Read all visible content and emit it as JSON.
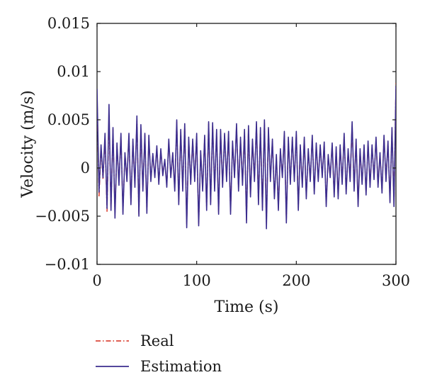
{
  "chart_data": {
    "type": "line",
    "xlabel": "Time (s)",
    "ylabel": "Velocity (m/s)",
    "xlim": [
      0,
      300
    ],
    "ylim": [
      -0.01,
      0.015
    ],
    "xticks": [
      0,
      100,
      200,
      300
    ],
    "xtick_labels": [
      "0",
      "100",
      "200",
      "300"
    ],
    "yticks": [
      -0.01,
      -0.005,
      0,
      0.005,
      0.01,
      0.015
    ],
    "ytick_labels": [
      "−0.01",
      "−0.005",
      "0",
      "0.005",
      "0.01",
      "0.015"
    ],
    "grid": false,
    "legend_position": "bottom-left, below plot",
    "series": [
      {
        "name": "Real",
        "color": "#d62a1a",
        "style": "dash-dot",
        "x": [
          0,
          2,
          4,
          6,
          8,
          10,
          12,
          14,
          16,
          18,
          20,
          22,
          24,
          26,
          28,
          30,
          32,
          34,
          36,
          38,
          40,
          42,
          44,
          46,
          48,
          50,
          52,
          54,
          56,
          58,
          60,
          62,
          64,
          66,
          68,
          70,
          72,
          74,
          76,
          78,
          80,
          82,
          84,
          86,
          88,
          90,
          92,
          94,
          96,
          98,
          100,
          102,
          104,
          106,
          108,
          110,
          112,
          114,
          116,
          118,
          120,
          122,
          124,
          126,
          128,
          130,
          132,
          134,
          136,
          138,
          140,
          142,
          144,
          146,
          148,
          150,
          152,
          154,
          156,
          158,
          160,
          162,
          164,
          166,
          168,
          170,
          172,
          174,
          176,
          178,
          180,
          182,
          184,
          186,
          188,
          190,
          192,
          194,
          196,
          198,
          200,
          202,
          204,
          206,
          208,
          210,
          212,
          214,
          216,
          218,
          220,
          222,
          224,
          226,
          228,
          230,
          232,
          234,
          236,
          238,
          240,
          242,
          244,
          246,
          248,
          250,
          252,
          254,
          256,
          258,
          260,
          262,
          264,
          266,
          268,
          270,
          272,
          274,
          276,
          278,
          280,
          282,
          284,
          286,
          288,
          290,
          292,
          294,
          296,
          298,
          300
        ],
        "y": [
          0.0075,
          -0.003,
          0.002,
          -0.0012,
          0.0033,
          -0.0045,
          0.0055,
          -0.0042,
          0.004,
          -0.0048,
          0.0024,
          -0.0015,
          0.0034,
          -0.0046,
          0.0015,
          -0.0012,
          0.0034,
          -0.0036,
          0.0028,
          -0.0018,
          0.0052,
          -0.0048,
          0.0042,
          -0.0022,
          0.0034,
          -0.0045,
          0.0032,
          -0.0012,
          0.0013,
          -0.0008,
          0.0021,
          -0.0015,
          0.0018,
          -0.0006,
          0.0007,
          -0.0018,
          0.0028,
          -0.0008,
          0.0014,
          -0.0022,
          0.0048,
          -0.0036,
          0.0038,
          -0.0022,
          0.0044,
          -0.0058,
          0.003,
          -0.0015,
          0.0028,
          -0.0012,
          0.0034,
          -0.0058,
          0.0016,
          -0.0022,
          0.0032,
          -0.0042,
          0.0046,
          -0.0036,
          0.0045,
          -0.0022,
          0.0038,
          -0.0046,
          0.0038,
          -0.0018,
          0.0034,
          -0.0012,
          0.0036,
          -0.0046,
          0.0026,
          -0.0008,
          0.0044,
          -0.0022,
          0.003,
          -0.0016,
          0.0038,
          -0.0055,
          0.0042,
          -0.0028,
          0.0028,
          -0.0012,
          0.0046,
          -0.0036,
          0.004,
          -0.0042,
          0.0048,
          -0.0058,
          0.004,
          -0.0012,
          0.0028,
          -0.003,
          0.0012,
          -0.0042,
          0.0018,
          -0.0008,
          0.0036,
          -0.0055,
          0.003,
          -0.0015,
          0.003,
          -0.0012,
          0.0036,
          -0.0042,
          0.0022,
          -0.0018,
          0.003,
          -0.003,
          0.0018,
          -0.0012,
          0.0032,
          -0.0025,
          0.0024,
          -0.0012,
          0.0022,
          -0.0008,
          0.0025,
          -0.0038,
          0.0012,
          -0.0008,
          0.0024,
          -0.0028,
          0.002,
          -0.003,
          0.0022,
          -0.0015,
          0.0034,
          -0.0025,
          0.0018,
          -0.0012,
          0.0045,
          -0.0022,
          0.0028,
          -0.0038,
          0.0018,
          -0.0015,
          0.0022,
          -0.0026,
          0.0026,
          -0.0018,
          0.0022,
          -0.001,
          0.003,
          -0.0018,
          0.0014,
          -0.0024,
          0.0032,
          -0.0012,
          0.0026,
          -0.0034,
          0.004,
          -0.0038,
          0.0088
        ]
      },
      {
        "name": "Estimation",
        "color": "#3b2d8e",
        "style": "solid",
        "x": [
          0,
          2,
          4,
          6,
          8,
          10,
          12,
          14,
          16,
          18,
          20,
          22,
          24,
          26,
          28,
          30,
          32,
          34,
          36,
          38,
          40,
          42,
          44,
          46,
          48,
          50,
          52,
          54,
          56,
          58,
          60,
          62,
          64,
          66,
          68,
          70,
          72,
          74,
          76,
          78,
          80,
          82,
          84,
          86,
          88,
          90,
          92,
          94,
          96,
          98,
          100,
          102,
          104,
          106,
          108,
          110,
          112,
          114,
          116,
          118,
          120,
          122,
          124,
          126,
          128,
          130,
          132,
          134,
          136,
          138,
          140,
          142,
          144,
          146,
          148,
          150,
          152,
          154,
          156,
          158,
          160,
          162,
          164,
          166,
          168,
          170,
          172,
          174,
          176,
          178,
          180,
          182,
          184,
          186,
          188,
          190,
          192,
          194,
          196,
          198,
          200,
          202,
          204,
          206,
          208,
          210,
          212,
          214,
          216,
          218,
          220,
          222,
          224,
          226,
          228,
          230,
          232,
          234,
          236,
          238,
          240,
          242,
          244,
          246,
          248,
          250,
          252,
          254,
          256,
          258,
          260,
          262,
          264,
          266,
          268,
          270,
          272,
          274,
          276,
          278,
          280,
          282,
          284,
          286,
          288,
          290,
          292,
          294,
          296,
          298,
          300
        ],
        "y": [
          0.0082,
          -0.0025,
          0.0024,
          -0.001,
          0.0036,
          -0.0042,
          0.0066,
          -0.0044,
          0.0042,
          -0.0052,
          0.0026,
          -0.0018,
          0.0036,
          -0.0048,
          0.0016,
          -0.0014,
          0.0036,
          -0.0038,
          0.003,
          -0.002,
          0.0054,
          -0.005,
          0.0045,
          -0.0024,
          0.0036,
          -0.0047,
          0.0034,
          -0.0014,
          0.0015,
          -0.001,
          0.0023,
          -0.0017,
          0.002,
          -0.0008,
          0.0009,
          -0.002,
          0.003,
          -0.001,
          0.0016,
          -0.0024,
          0.005,
          -0.0038,
          0.004,
          -0.0024,
          0.0046,
          -0.0062,
          0.0032,
          -0.0017,
          0.003,
          -0.0014,
          0.0036,
          -0.006,
          0.0018,
          -0.0024,
          0.0034,
          -0.0044,
          0.0048,
          -0.0038,
          0.0047,
          -0.0024,
          0.004,
          -0.0048,
          0.004,
          -0.002,
          0.0036,
          -0.0014,
          0.0038,
          -0.0048,
          0.0028,
          -0.001,
          0.0046,
          -0.0024,
          0.0032,
          -0.0018,
          0.004,
          -0.0057,
          0.0044,
          -0.003,
          0.003,
          -0.0014,
          0.0048,
          -0.0038,
          0.0042,
          -0.0044,
          0.005,
          -0.0063,
          0.0042,
          -0.0014,
          0.003,
          -0.0032,
          0.0014,
          -0.0044,
          0.002,
          -0.001,
          0.0038,
          -0.0057,
          0.0032,
          -0.0017,
          0.0032,
          -0.0014,
          0.0038,
          -0.0044,
          0.0024,
          -0.002,
          0.0032,
          -0.0032,
          0.002,
          -0.0014,
          0.0034,
          -0.0027,
          0.0026,
          -0.0014,
          0.0024,
          -0.001,
          0.0027,
          -0.004,
          0.0014,
          -0.001,
          0.0026,
          -0.003,
          0.0022,
          -0.0032,
          0.0024,
          -0.0017,
          0.0036,
          -0.0027,
          0.002,
          -0.0014,
          0.0048,
          -0.0024,
          0.003,
          -0.004,
          0.002,
          -0.0017,
          0.0024,
          -0.0028,
          0.0028,
          -0.002,
          0.0024,
          -0.0012,
          0.0032,
          -0.002,
          0.0016,
          -0.0026,
          0.0034,
          -0.0014,
          0.0028,
          -0.0036,
          0.0042,
          -0.004,
          0.0085
        ]
      }
    ]
  }
}
